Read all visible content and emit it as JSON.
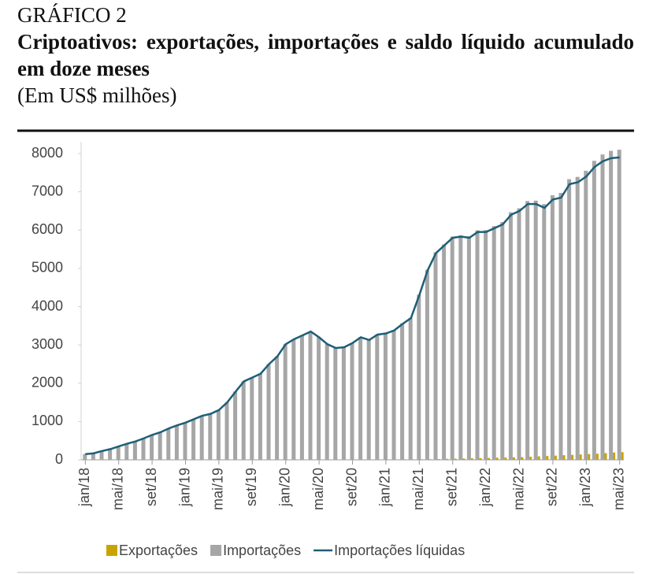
{
  "chart_data": {
    "type": "bar-line",
    "label": "GRÁFICO 2",
    "title": "Criptoativos: exportações, importações e saldo líquido acumulado em doze meses",
    "subtitle": "(Em US$ milhões)",
    "categories": [
      "jan/18",
      null,
      null,
      null,
      "mai/18",
      null,
      null,
      null,
      "set/18",
      null,
      null,
      null,
      "jan/19",
      null,
      null,
      null,
      "mai/19",
      null,
      null,
      null,
      "set/19",
      null,
      null,
      null,
      "jan/20",
      null,
      null,
      null,
      "mai/20",
      null,
      null,
      null,
      "set/20",
      null,
      null,
      null,
      "jan/21",
      null,
      null,
      null,
      "mai/21",
      null,
      null,
      null,
      "set/21",
      null,
      null,
      null,
      "jan/22",
      null,
      null,
      null,
      "mai/22",
      null,
      null,
      null,
      "set/22",
      null,
      null,
      null,
      "jan/23",
      null,
      null,
      null,
      "mai/23"
    ],
    "series": [
      {
        "name": "Exportações",
        "type": "bar",
        "color": "#c9a400",
        "values": [
          2,
          2,
          2,
          2,
          2,
          2,
          2,
          2,
          2,
          2,
          2,
          2,
          3,
          3,
          3,
          3,
          3,
          3,
          3,
          3,
          3,
          3,
          3,
          3,
          5,
          5,
          5,
          5,
          5,
          5,
          5,
          5,
          8,
          8,
          8,
          8,
          10,
          10,
          12,
          12,
          15,
          15,
          20,
          25,
          30,
          35,
          40,
          45,
          50,
          55,
          60,
          65,
          70,
          80,
          90,
          100,
          110,
          120,
          130,
          140,
          150,
          160,
          175,
          190,
          200
        ]
      },
      {
        "name": "Importações",
        "type": "bar",
        "color": "#a6a6a6",
        "values": [
          152,
          172,
          232,
          282,
          352,
          422,
          482,
          562,
          652,
          722,
          822,
          902,
          973,
          1063,
          1153,
          1203,
          1303,
          1503,
          1783,
          2053,
          2153,
          2253,
          2503,
          2703,
          3025,
          3155,
          3255,
          3355,
          3205,
          3025,
          2925,
          2945,
          3058,
          3208,
          3138,
          3278,
          3310,
          3390,
          3562,
          3712,
          4315,
          4965,
          5420,
          5625,
          5830,
          5865,
          5840,
          5995,
          6000,
          6105,
          6210,
          6465,
          6570,
          6760,
          6770,
          6680,
          6910,
          6970,
          7330,
          7390,
          7550,
          7810,
          7975,
          8070,
          8100
        ]
      },
      {
        "name": "Importações líquidas",
        "type": "line",
        "color": "#1d5f78",
        "values": [
          150,
          170,
          230,
          280,
          350,
          420,
          480,
          560,
          650,
          720,
          820,
          900,
          970,
          1060,
          1150,
          1200,
          1300,
          1500,
          1780,
          2050,
          2150,
          2250,
          2500,
          2700,
          3020,
          3150,
          3250,
          3350,
          3200,
          3020,
          2920,
          2940,
          3050,
          3200,
          3130,
          3270,
          3300,
          3380,
          3550,
          3700,
          4300,
          4950,
          5400,
          5600,
          5800,
          5830,
          5800,
          5950,
          5950,
          6050,
          6150,
          6400,
          6500,
          6680,
          6680,
          6580,
          6800,
          6850,
          7200,
          7250,
          7400,
          7650,
          7800,
          7880,
          7900
        ]
      }
    ],
    "ylim": [
      0,
      8000
    ],
    "yticks": [
      0,
      1000,
      2000,
      3000,
      4000,
      5000,
      6000,
      7000,
      8000
    ]
  }
}
